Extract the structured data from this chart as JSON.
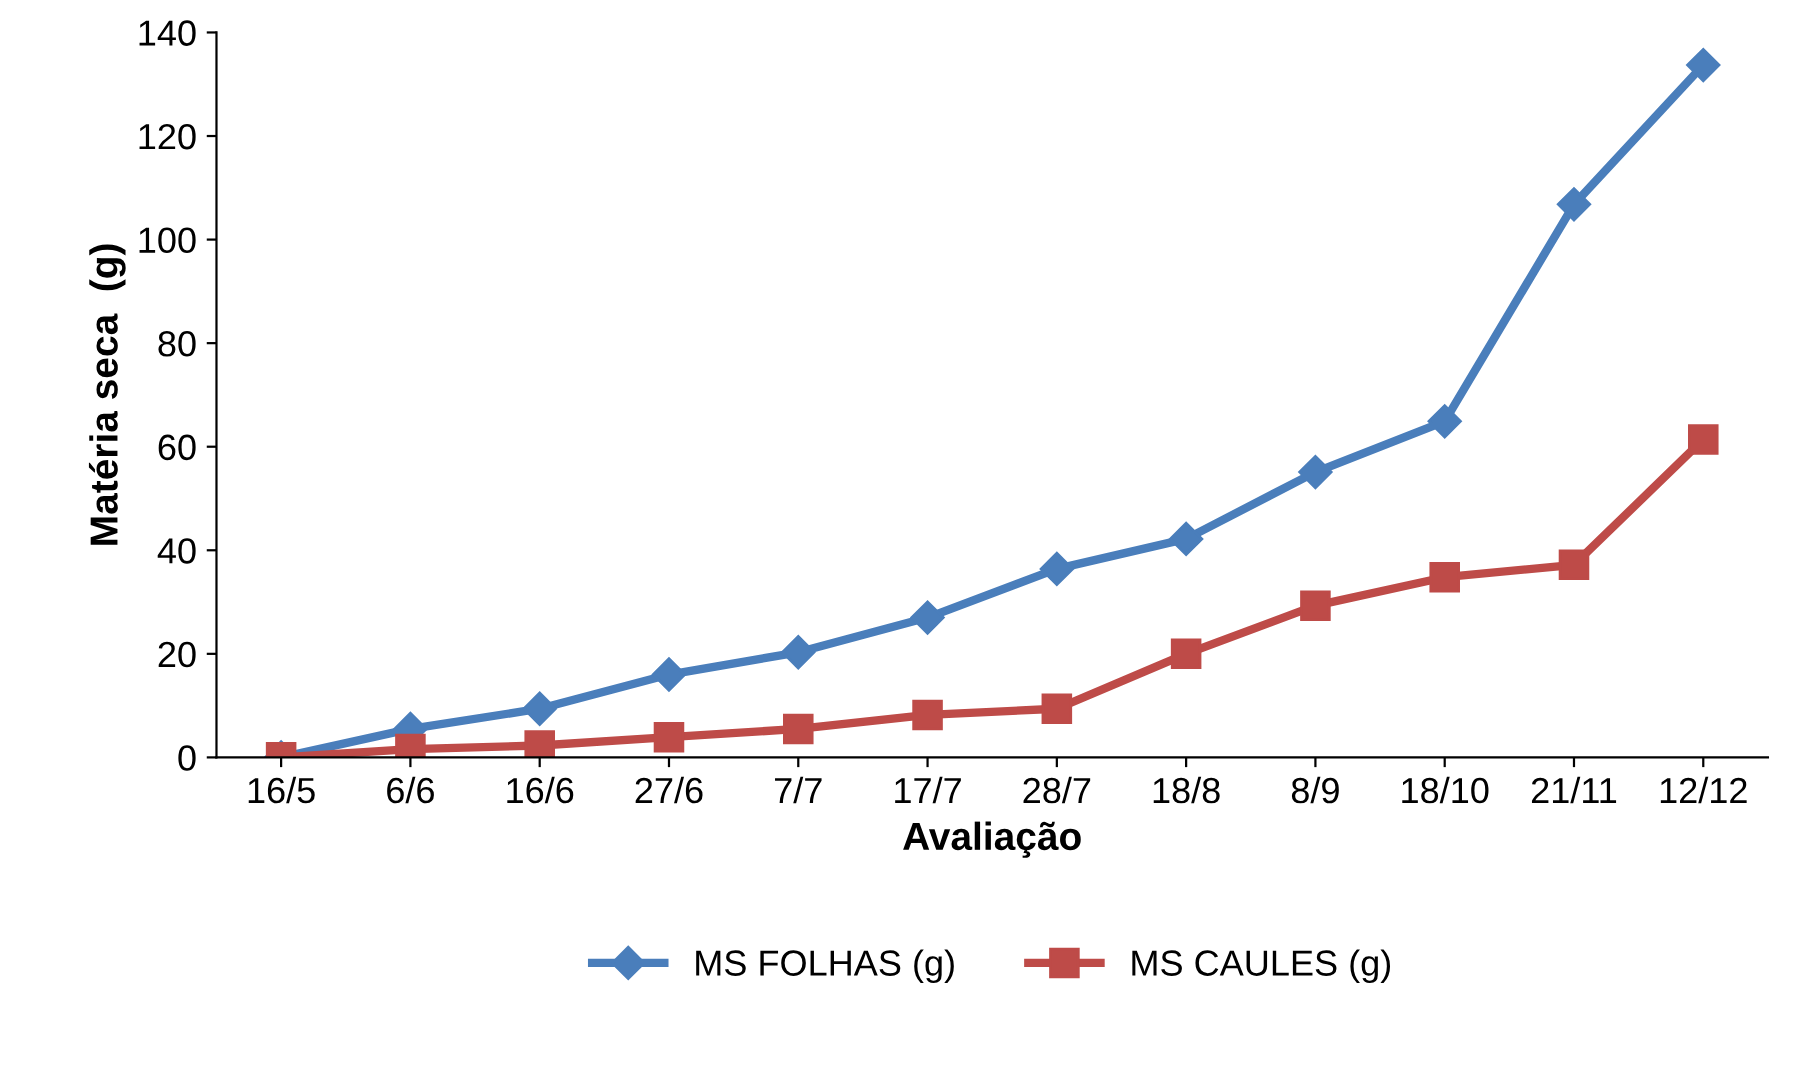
{
  "chart_data": {
    "type": "line",
    "xlabel": "Avaliação",
    "ylabel": "Matéria seca  (g)",
    "categories": [
      "16/5",
      "6/6",
      "16/6",
      "27/6",
      "7/7",
      "17/7",
      "28/7",
      "18/8",
      "8/9",
      "18/10",
      "21/11",
      "12/12"
    ],
    "series": [
      {
        "name": "MS FOLHAS (g)",
        "color": "#4a7ebb",
        "marker": "diamond",
        "values": [
          0,
          5.5,
          9.4,
          16,
          20.3,
          27,
          36.4,
          42.2,
          55.1,
          64.9,
          106.8,
          133.7
        ]
      },
      {
        "name": "MS CAULES (g)",
        "color": "#be4b48",
        "marker": "square",
        "values": [
          0,
          1.6,
          2.3,
          3.9,
          5.5,
          8.2,
          9.4,
          20,
          29.3,
          34.8,
          37.2,
          61.4
        ]
      }
    ],
    "ylim": [
      0,
      140
    ],
    "yticks": [
      0,
      20,
      40,
      60,
      80,
      100,
      120,
      140
    ],
    "grid": false,
    "legend": "bottom",
    "line_style": "solid"
  }
}
